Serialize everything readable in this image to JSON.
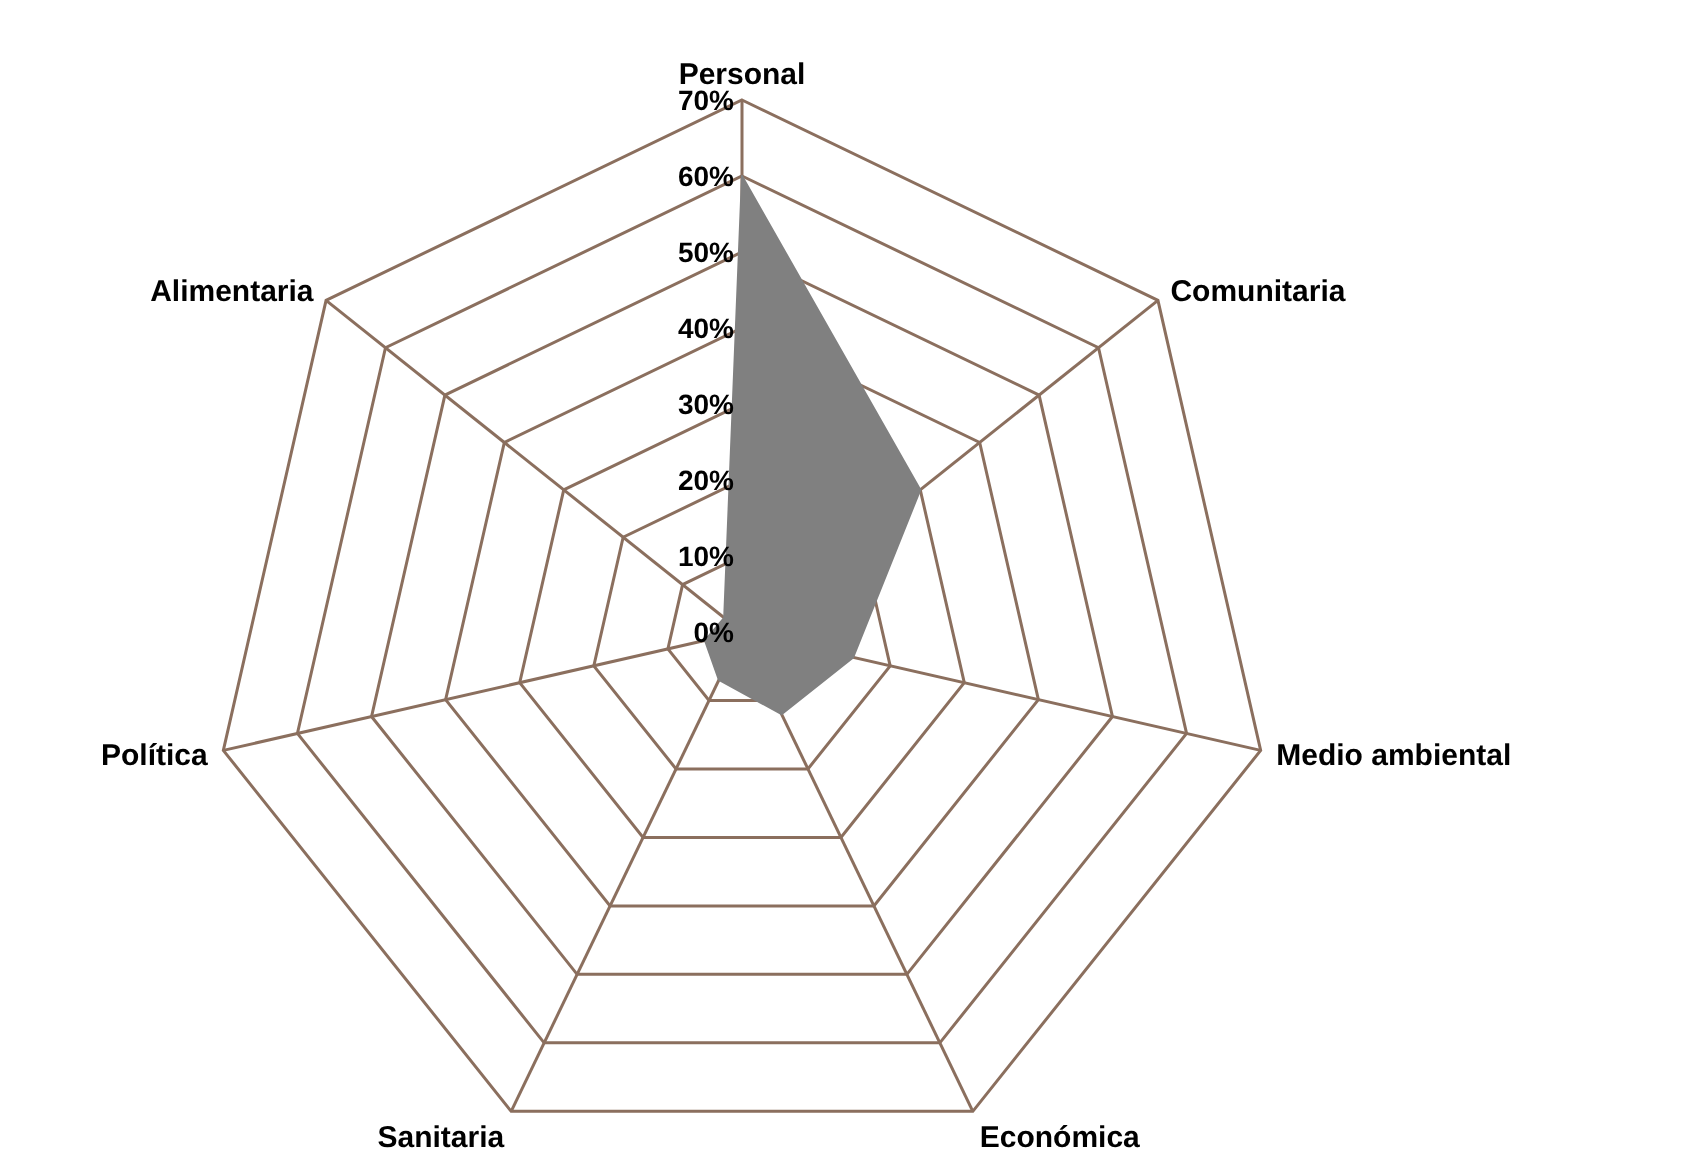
{
  "chart_data": {
    "type": "radar",
    "categories": [
      "Personal",
      "Comunitaria",
      "Medio ambiental",
      "Económica",
      "Sanitaria",
      "Política",
      "Alimentaria"
    ],
    "series": [
      {
        "color": "#808080",
        "values": [
          60,
          30,
          15,
          12,
          7,
          5,
          3
        ]
      }
    ],
    "ylim": [
      0,
      70
    ],
    "yticks": [
      {
        "value": 0,
        "label": "0%"
      },
      {
        "value": 10,
        "label": "10%"
      },
      {
        "value": 20,
        "label": "20%"
      },
      {
        "value": 30,
        "label": "30%"
      },
      {
        "value": 40,
        "label": "40%"
      },
      {
        "value": 50,
        "label": "50%"
      },
      {
        "value": 60,
        "label": "60%"
      },
      {
        "value": 70,
        "label": "70%"
      }
    ],
    "grid": true,
    "legend": false
  }
}
